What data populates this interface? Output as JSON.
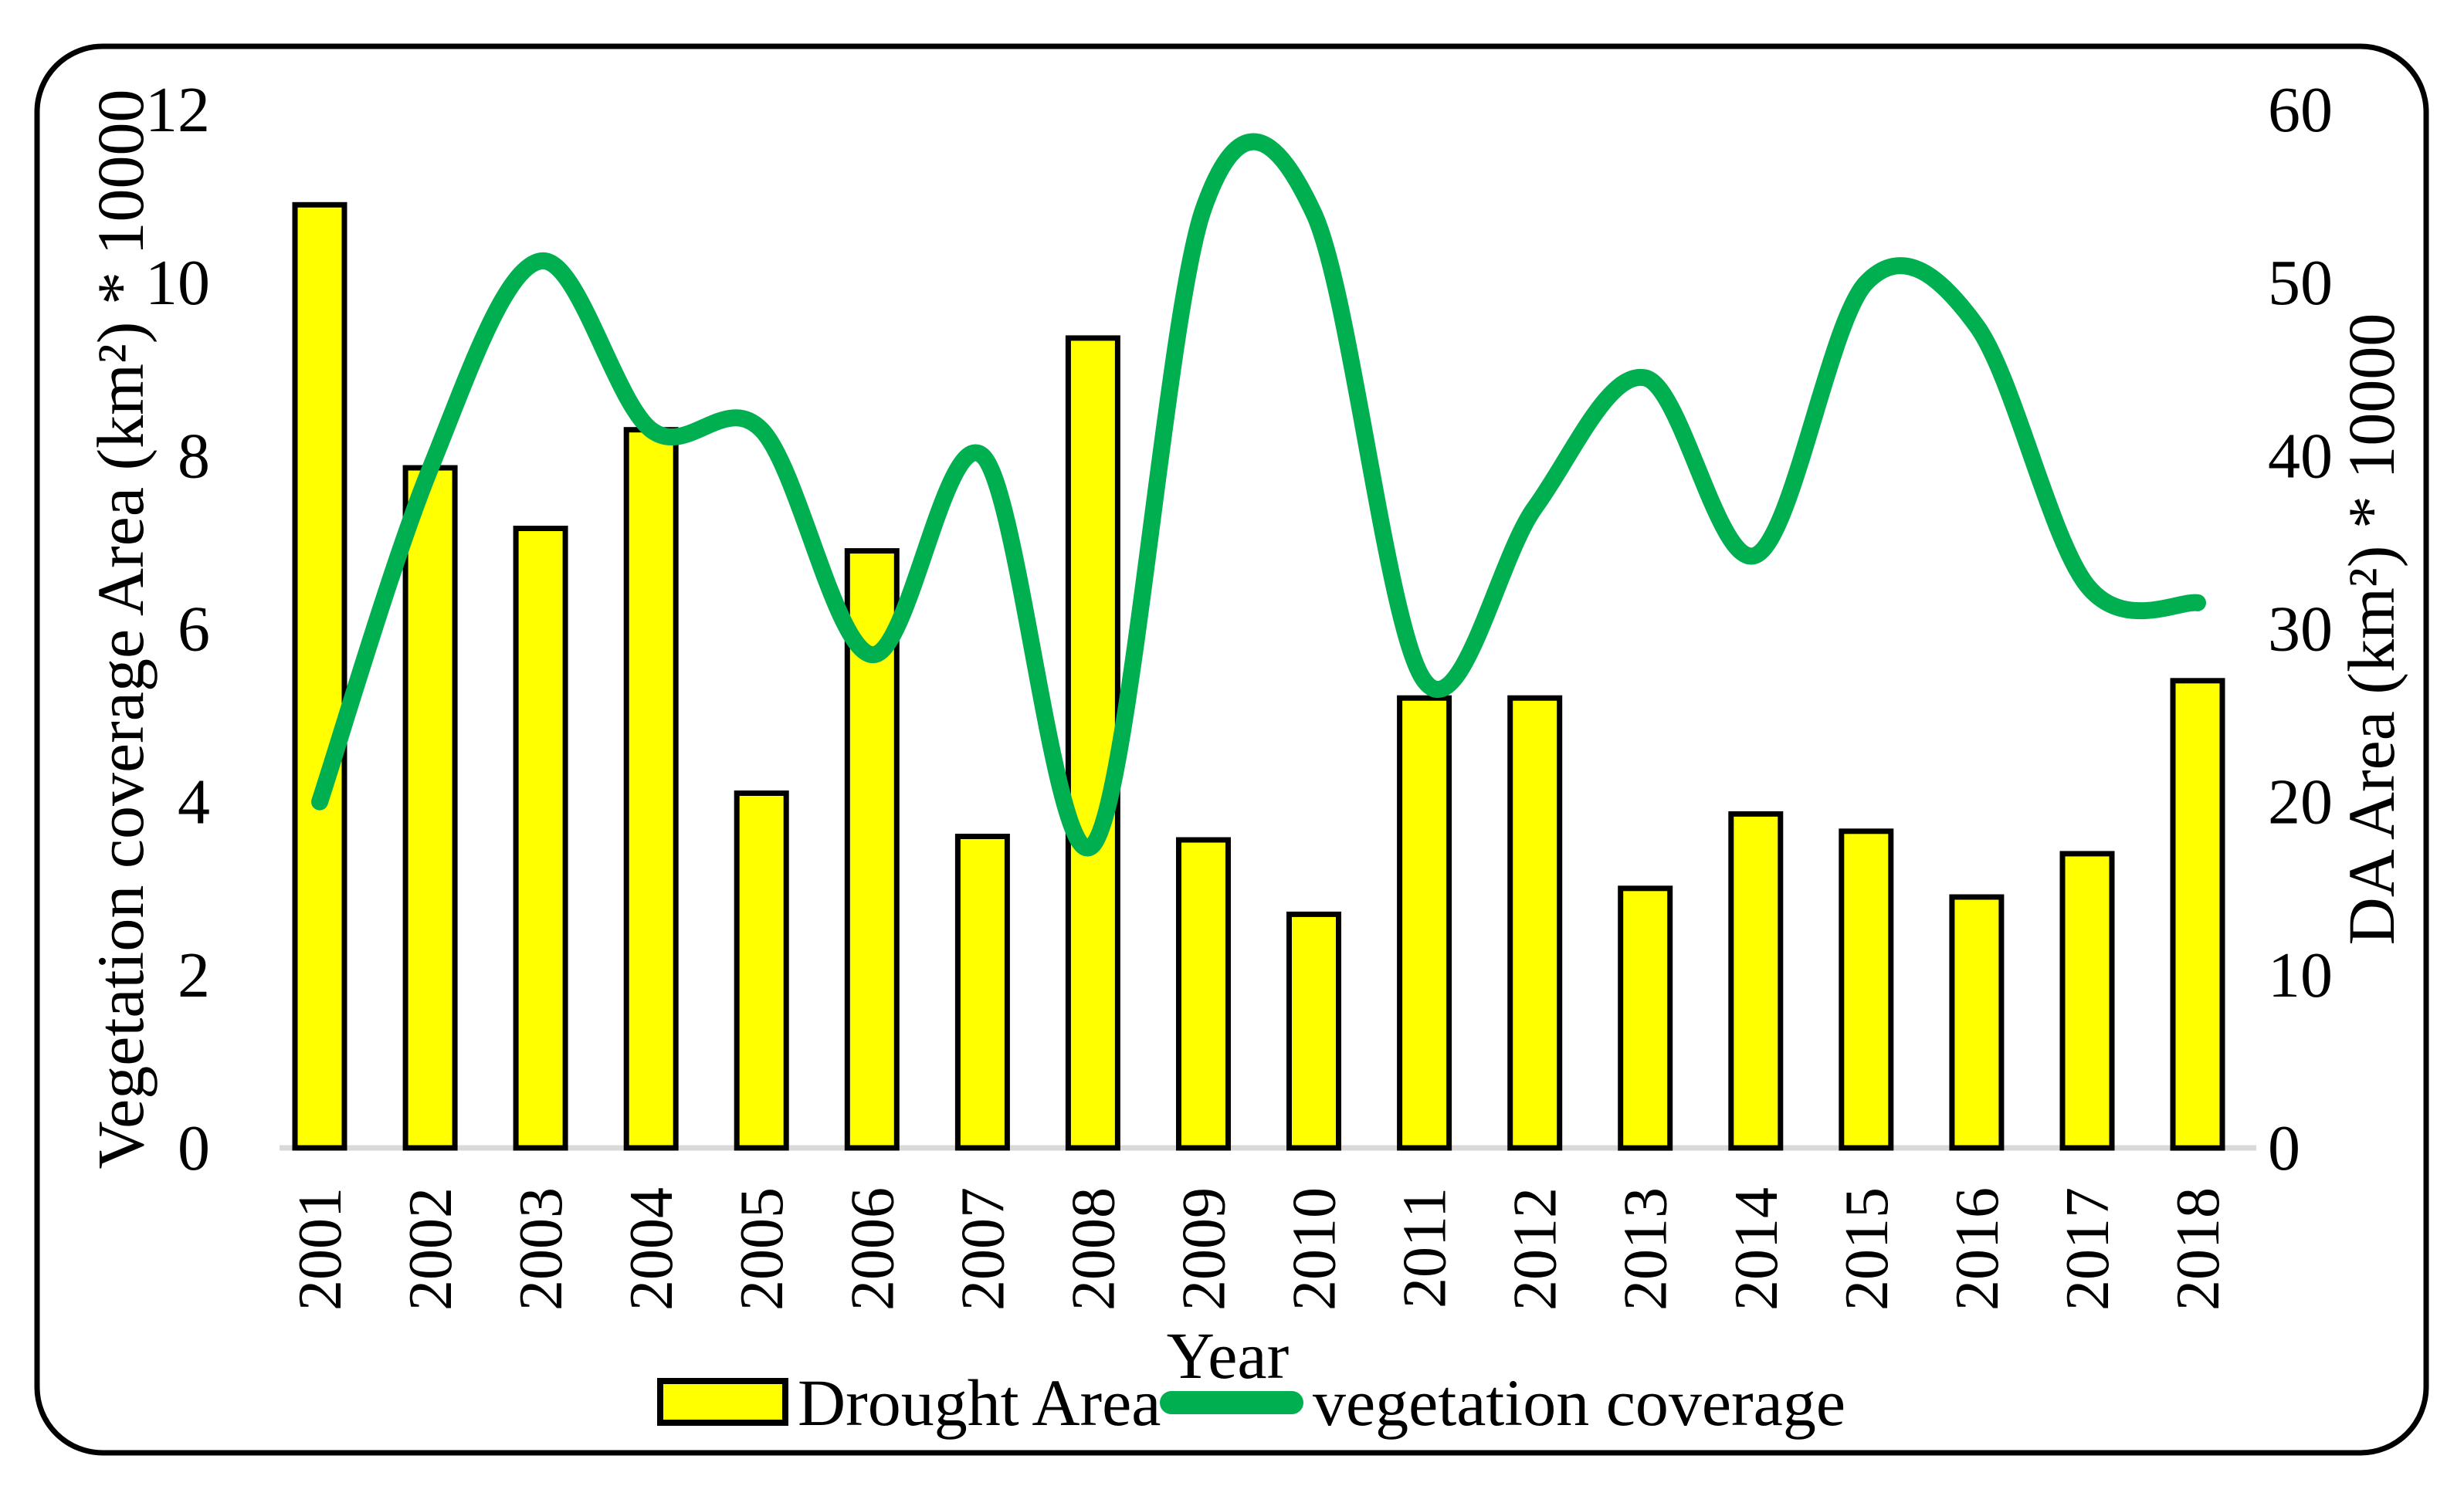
{
  "figure": {
    "border_color": "#000000",
    "background": "#ffffff"
  },
  "colors": {
    "bar_fill": "#FFFF00",
    "bar_stroke": "#000000",
    "line_color": "#00B050",
    "baseline_color": "#D9D9D9",
    "text_color": "#000000"
  },
  "chart_data": {
    "type": "combo",
    "categories": [
      "2001",
      "2002",
      "2003",
      "2004",
      "2005",
      "2006",
      "2007",
      "2008",
      "2009",
      "2010",
      "2011",
      "2012",
      "2013",
      "2014",
      "2015",
      "2016",
      "2017",
      "2018"
    ],
    "series": [
      {
        "name": "Drought Area",
        "type": "bar",
        "axis": "right",
        "values": [
          54.5,
          39.3,
          35.8,
          41.5,
          20.5,
          34.5,
          18.0,
          46.8,
          17.8,
          13.5,
          26.0,
          26.0,
          15.0,
          19.3,
          18.3,
          14.5,
          17.0,
          27.0
        ]
      },
      {
        "name": "vegetation coverage",
        "type": "line",
        "axis": "left",
        "values": [
          4.0,
          7.85,
          10.25,
          8.3,
          8.3,
          5.7,
          8.0,
          3.5,
          10.85,
          10.8,
          5.4,
          7.4,
          8.9,
          6.85,
          10.0,
          9.5,
          6.5,
          6.3
        ]
      }
    ],
    "left_axis": {
      "label": "Vegetation coverage Area (km²)  * 10000",
      "ticks": [
        0,
        2,
        4,
        6,
        8,
        10,
        12
      ],
      "range": [
        0,
        12
      ]
    },
    "right_axis": {
      "label": "DA Area (km²)  * 10000",
      "ticks": [
        0,
        10,
        20,
        30,
        40,
        50,
        60
      ],
      "range": [
        0,
        60
      ]
    },
    "x_axis": {
      "label": "Year"
    },
    "legend_position": "bottom",
    "grid": false
  }
}
